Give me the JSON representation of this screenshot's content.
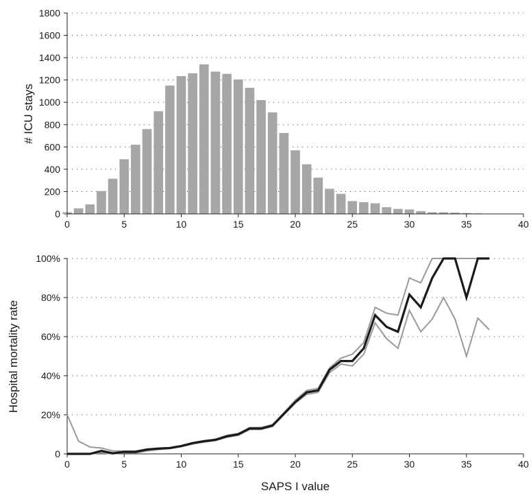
{
  "chart_data": [
    {
      "type": "bar",
      "ylabel": "# ICU stays",
      "xlim": [
        0,
        40
      ],
      "ylim": [
        0,
        1800
      ],
      "x_ticks": [
        0,
        5,
        10,
        15,
        20,
        25,
        30,
        35,
        40
      ],
      "y_ticks": [
        0,
        200,
        400,
        600,
        800,
        1000,
        1200,
        1400,
        1600,
        1800
      ],
      "grid": "horizontal dotted",
      "bar_color": "#a6a6a6",
      "x": [
        0,
        1,
        2,
        3,
        4,
        5,
        6,
        7,
        8,
        9,
        10,
        11,
        12,
        13,
        14,
        15,
        16,
        17,
        18,
        19,
        20,
        21,
        22,
        23,
        24,
        25,
        26,
        27,
        28,
        29,
        30,
        31,
        32,
        33,
        34,
        35,
        36,
        37,
        38,
        39
      ],
      "values": [
        15,
        50,
        85,
        205,
        315,
        490,
        620,
        760,
        920,
        1150,
        1235,
        1260,
        1340,
        1275,
        1255,
        1205,
        1130,
        1020,
        910,
        725,
        570,
        445,
        325,
        225,
        180,
        115,
        105,
        95,
        60,
        45,
        40,
        25,
        15,
        15,
        12,
        8,
        5,
        3,
        2,
        2
      ]
    },
    {
      "type": "line",
      "xlabel": "SAPS I value",
      "ylabel": "Hospital mortality rate",
      "xlim": [
        0,
        40
      ],
      "ylim": [
        0,
        100
      ],
      "x_ticks": [
        0,
        5,
        10,
        15,
        20,
        25,
        30,
        35,
        40
      ],
      "y_ticks": [
        0,
        20,
        40,
        60,
        80,
        100
      ],
      "y_tick_labels": [
        "0",
        "20%",
        "40%",
        "60%",
        "80%",
        "100%"
      ],
      "grid": "horizontal dotted",
      "x": [
        0,
        1,
        2,
        3,
        4,
        5,
        6,
        7,
        8,
        9,
        10,
        11,
        12,
        13,
        14,
        15,
        16,
        17,
        18,
        19,
        20,
        21,
        22,
        23,
        24,
        25,
        26,
        27,
        28,
        29,
        30,
        31,
        32,
        33,
        34,
        35,
        36,
        37
      ],
      "series": [
        {
          "role": "upper",
          "color": "#999999",
          "values": [
            20,
            6.5,
            3.5,
            3,
            1.5,
            1.5,
            1.5,
            2.5,
            3,
            3.2,
            4.2,
            5.7,
            6.7,
            7.5,
            9.5,
            10.5,
            13.5,
            13.5,
            15,
            21,
            27.5,
            32.5,
            33.5,
            44,
            49,
            51,
            57,
            75,
            72,
            71,
            90,
            87.5,
            100,
            100,
            100,
            100,
            100,
            100
          ]
        },
        {
          "role": "estimate",
          "color": "#1a1a1a",
          "values": [
            0,
            0,
            0,
            1.5,
            0.3,
            1,
            1,
            2.2,
            2.7,
            3,
            4,
            5.5,
            6.5,
            7.2,
            9,
            10,
            13,
            13,
            14.5,
            20.5,
            26.5,
            31.5,
            32.5,
            43,
            47.5,
            47.5,
            54,
            71,
            65,
            62.5,
            81.5,
            75,
            90,
            100,
            100,
            80,
            100,
            100
          ]
        },
        {
          "role": "lower",
          "color": "#999999",
          "values": [
            0,
            0,
            0,
            0.5,
            0,
            0.5,
            0.5,
            1.5,
            2.2,
            2.7,
            3.6,
            5,
            6,
            6.8,
            8.5,
            9.5,
            12.5,
            12.5,
            14,
            20,
            26,
            30.5,
            31.5,
            41.5,
            46,
            45,
            51,
            67,
            59,
            54,
            73.5,
            62.5,
            69,
            80,
            69,
            50,
            69.5,
            63.5
          ]
        }
      ]
    }
  ]
}
